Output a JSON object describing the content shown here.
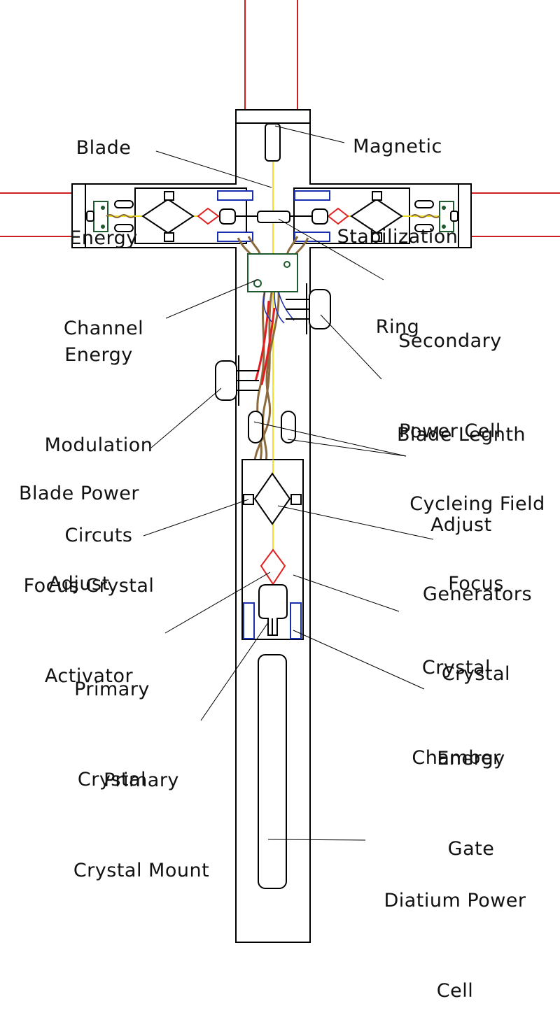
{
  "colors": {
    "outline": "#000000",
    "blade": "#cc1f1f",
    "energy_channel": "#f0e22a",
    "wiring": "#8b6a3e",
    "circuit": "#1f5a2f",
    "gate": "#1a2fb0",
    "crystal": "#e02020"
  },
  "labels": {
    "blade_energy_channel": [
      "Blade",
      "Energy",
      "Channel"
    ],
    "magnetic_stabilization_ring": [
      "Magnetic",
      "Stabilization",
      "Ring"
    ],
    "secondary_power_cell": [
      "Secondary",
      "Power Cell"
    ],
    "energy_modulation_circuits": [
      "Energy",
      "Modulation",
      "Circuts"
    ],
    "blade_length_adjust": [
      "Blade Legnth",
      "Adjust"
    ],
    "blade_power_adjust": [
      "Blade Power",
      "Adjust"
    ],
    "cycling_field_generators": [
      "Cycleing Field",
      "Generators"
    ],
    "focus_crystal_activator": [
      "Focus Crystal",
      "Activator"
    ],
    "focus_crystal": [
      "Focus",
      "Crystal"
    ],
    "crystal_chamber": [
      "Crystal",
      "Chamber"
    ],
    "primary_crystal": [
      "Primary",
      "Crystal"
    ],
    "energy_gate": [
      "Energy",
      "Gate"
    ],
    "primary_crystal_mount": [
      "Primary",
      "Crystal Mount"
    ],
    "diatium_power_cell": [
      "Diatium Power",
      "Cell"
    ]
  }
}
